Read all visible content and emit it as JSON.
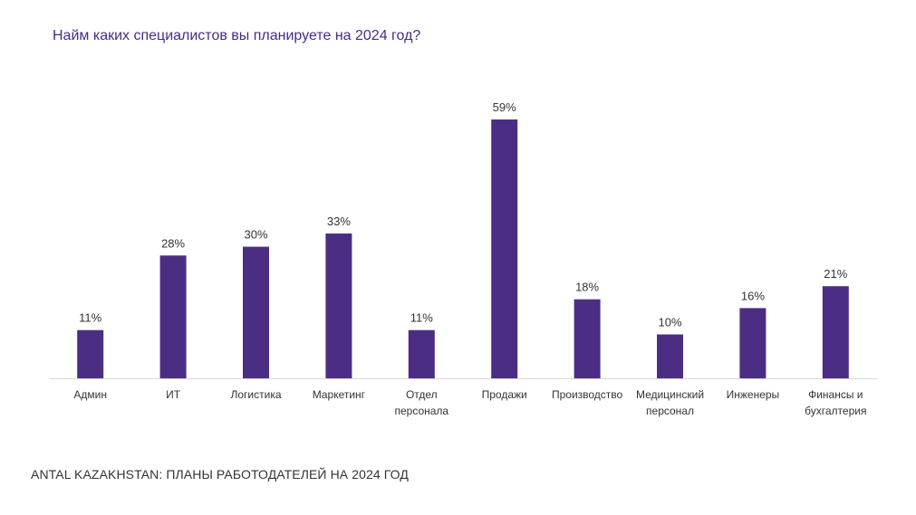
{
  "chart_data": {
    "type": "bar",
    "title": "Найм каких специалистов вы планируете на 2024 год?",
    "categories": [
      [
        "Админ"
      ],
      [
        "ИТ"
      ],
      [
        "Логистика"
      ],
      [
        "Маркетинг"
      ],
      [
        "Отдел",
        "персонала"
      ],
      [
        "Продажи"
      ],
      [
        "Производство"
      ],
      [
        "Медицинский",
        "персонал"
      ],
      [
        "Инженеры"
      ],
      [
        "Финансы и",
        "бухгалтерия"
      ]
    ],
    "values": [
      11,
      28,
      30,
      33,
      11,
      59,
      18,
      10,
      16,
      21
    ],
    "value_labels": [
      "11%",
      "28%",
      "30%",
      "33%",
      "11%",
      "59%",
      "18%",
      "10%",
      "16%",
      "21%"
    ],
    "unit": "%",
    "xlabel": "",
    "ylabel": "",
    "ylim": [
      0,
      59
    ],
    "grid": false,
    "legend": "none",
    "bar_color": "#4b2e83",
    "axis_color": "#d9d9d9"
  },
  "footer": {
    "text": "ANTAL KAZAKHSTAN: ПЛАНЫ РАБОТОДАТЕЛЕЙ НА 2024 ГОД"
  }
}
